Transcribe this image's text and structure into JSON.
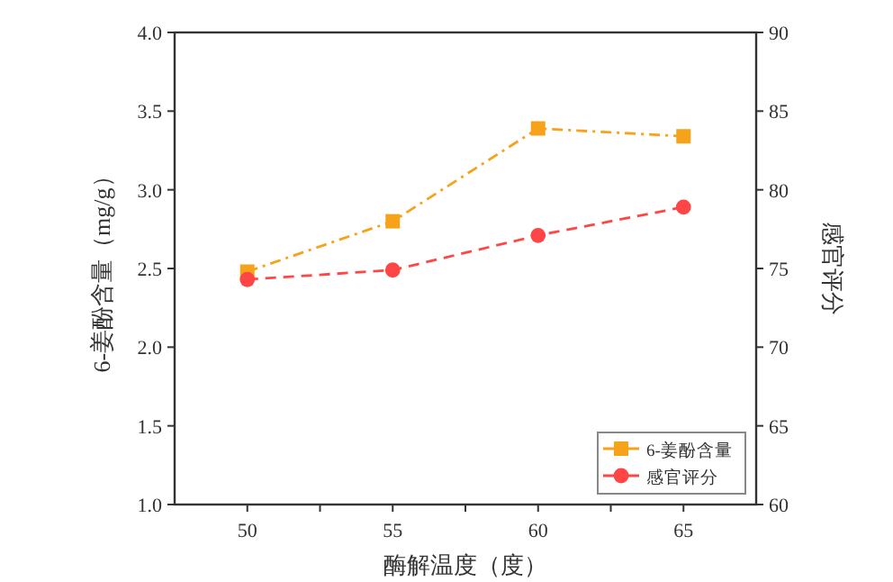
{
  "chart_data": {
    "type": "line",
    "xlabel": "酶解温度（度）",
    "ylabel": "6-姜酚含量（mg/g）",
    "y2label": "感官评分",
    "x": [
      50,
      55,
      60,
      65
    ],
    "xlim": [
      47.5,
      67.5
    ],
    "xticks": [
      50,
      {
        "value": 52.5,
        "label": null
      },
      55,
      {
        "value": 57.5,
        "label": null
      },
      60,
      {
        "value": 62.5,
        "label": null
      },
      65
    ],
    "ylim": [
      1.0,
      4.0
    ],
    "yticks": [
      {
        "value": 1,
        "label": "1.0"
      },
      1.5,
      {
        "value": 2,
        "label": "2.0"
      },
      2.5,
      {
        "value": 3,
        "label": "3.0"
      },
      3.5,
      {
        "value": 4,
        "label": "4.0"
      }
    ],
    "y2lim": [
      60,
      90
    ],
    "y2ticks": [
      60,
      65,
      70,
      75,
      80,
      85,
      90
    ],
    "legend": "bottom right",
    "series": [
      {
        "name": "6-姜酚含量",
        "color": "#f7a21b",
        "marker": "square",
        "line_style": "dashdot",
        "values": [
          2.48,
          2.8,
          3.39,
          3.34
        ]
      },
      {
        "name": "感官评分",
        "color": "#ff4646",
        "marker": "circle",
        "line_style": "dashed",
        "axis": "y2",
        "values": [
          74.3,
          74.9,
          77.1,
          78.9
        ]
      }
    ]
  }
}
